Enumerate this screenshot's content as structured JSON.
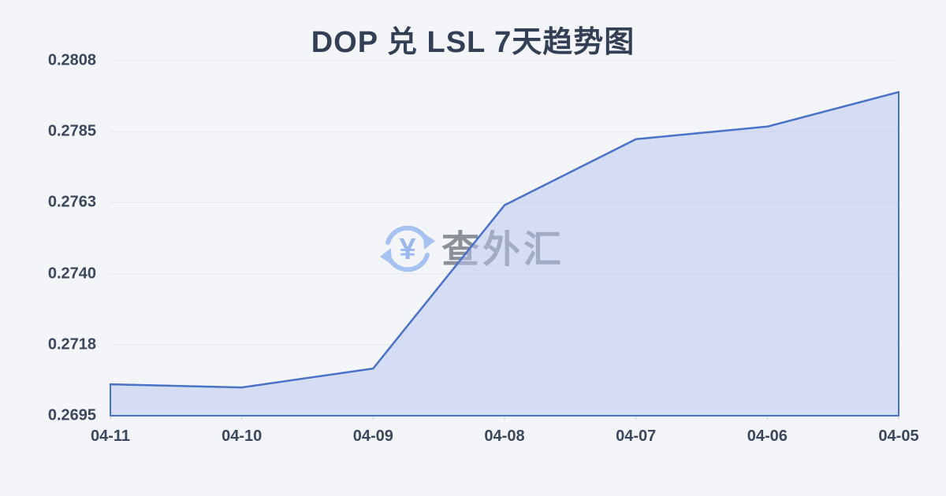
{
  "header": {
    "title": "DOP 兑 LSL 7天趋势图"
  },
  "watermark": {
    "text": "查外汇",
    "icon": "currency-exchange-icon",
    "text_color": "#8b9199",
    "icon_color": "#a6c2f1",
    "yen_color": "#9ab8ee"
  },
  "chart_data": {
    "type": "area",
    "title": "DOP 兑 LSL 7天趋势图",
    "categories": [
      "04-11",
      "04-10",
      "04-09",
      "04-08",
      "04-07",
      "04-06",
      "04-05"
    ],
    "values": [
      0.2705,
      0.2704,
      0.271,
      0.2762,
      0.2783,
      0.2787,
      0.2798
    ],
    "series_name": "DOP/LSL",
    "xlabel": "",
    "ylabel": "",
    "ylim": [
      0.2695,
      0.2808
    ],
    "y_tick_labels": [
      "0.2808",
      "0.2785",
      "0.2763",
      "0.2740",
      "0.2718",
      "0.2695"
    ],
    "grid": "horizontal",
    "legend": "none",
    "style": {
      "line_color": "#4a73c8",
      "fill_color": "rgba(185,200,238,0.52)",
      "grid_color": "#e3e6ec",
      "tick_color": "#c9ced6",
      "background": "#f3f5f8"
    }
  }
}
